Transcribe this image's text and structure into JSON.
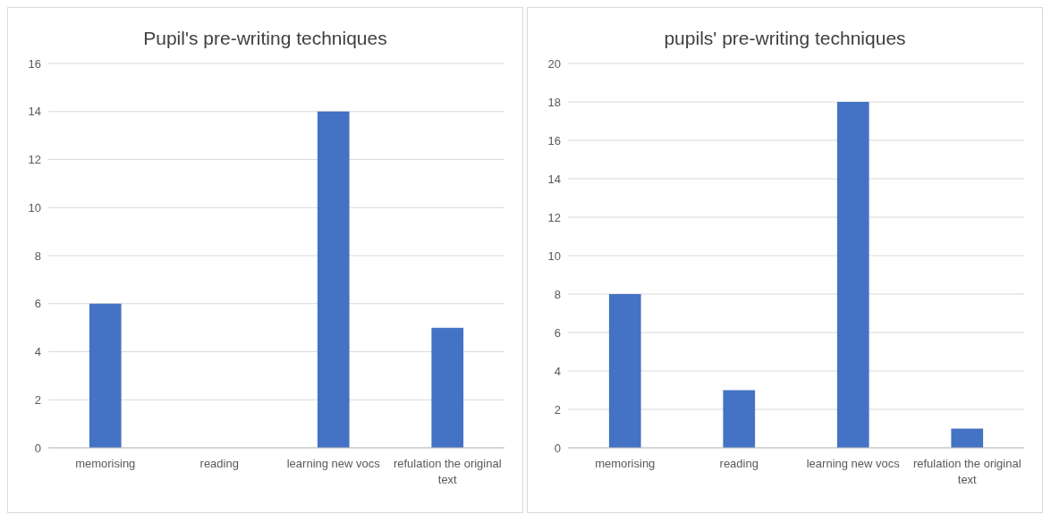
{
  "chart_data": [
    {
      "type": "bar",
      "title": "Pupil's pre-writing techniques",
      "categories": [
        "memorising",
        "reading",
        "learning new vocs",
        "refulation the original text"
      ],
      "values": [
        6,
        0,
        14,
        5
      ],
      "color": "#4472c4",
      "ylim": [
        0,
        16
      ],
      "yticks": [
        0,
        2,
        4,
        6,
        8,
        10,
        12,
        14,
        16
      ],
      "grid": "y"
    },
    {
      "type": "bar",
      "title": "pupils' pre-writing techniques",
      "categories": [
        "memorising",
        "reading",
        "learning new vocs",
        "refulation the original text"
      ],
      "values": [
        8,
        3,
        18,
        1
      ],
      "color": "#4472c4",
      "ylim": [
        0,
        20
      ],
      "yticks": [
        0,
        2,
        4,
        6,
        8,
        10,
        12,
        14,
        16,
        18,
        20
      ],
      "grid": "y"
    }
  ]
}
